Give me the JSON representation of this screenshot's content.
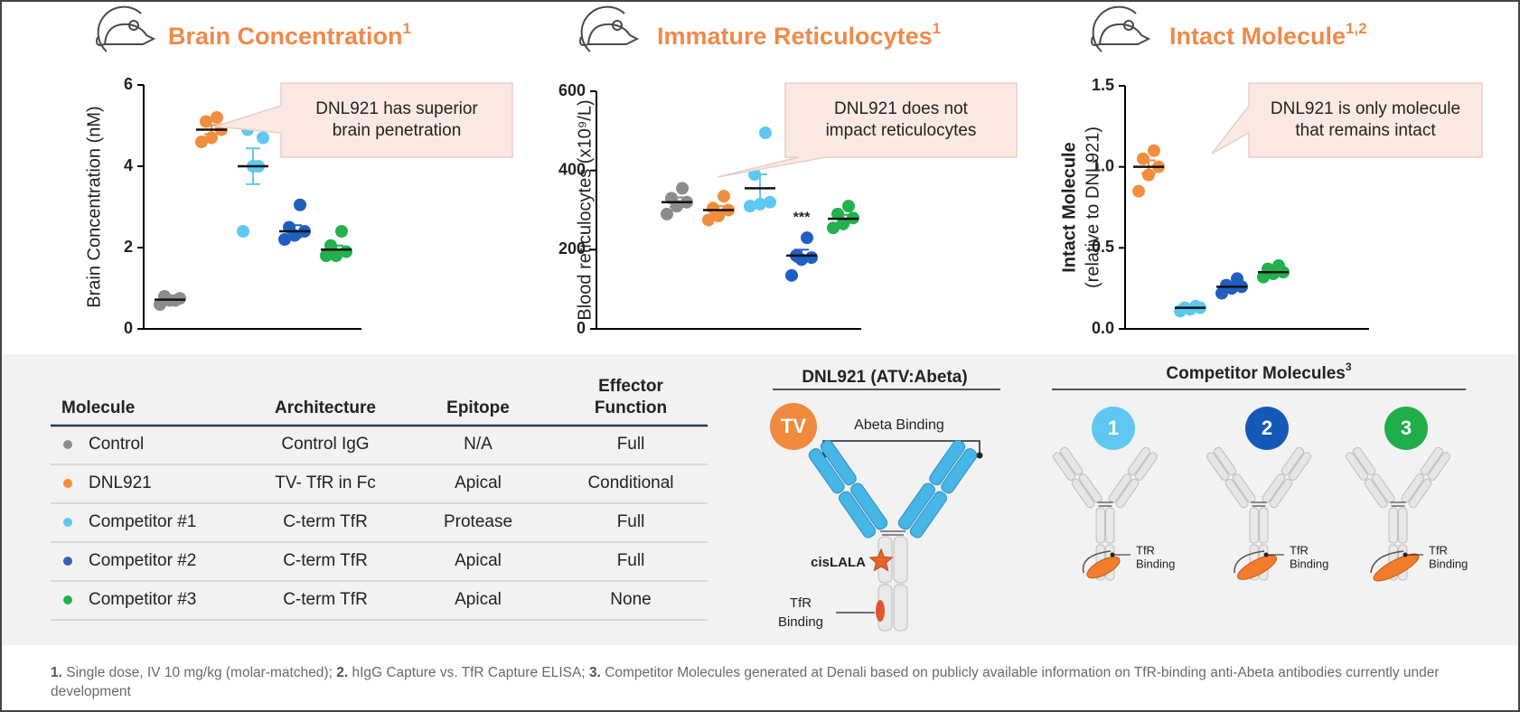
{
  "chart_data": [
    {
      "type": "dot",
      "title": "Brain Concentration",
      "title_sup": "1",
      "ylabel": [
        "Brain Concentration (nM)"
      ],
      "ylim": [
        0,
        6
      ],
      "yticks": [
        0,
        2,
        4,
        6
      ],
      "callout": [
        "DNL921 has superior",
        "brain penetration"
      ],
      "series": [
        {
          "color": "#8c8c8c",
          "values": [
            0.6,
            0.7,
            0.75,
            0.8,
            0.7
          ],
          "mean": 0.72,
          "sem": 0.04
        },
        {
          "color": "#ef8f3e",
          "values": [
            4.6,
            4.7,
            4.9,
            5.1,
            5.2
          ],
          "mean": 4.9,
          "sem": 0.11
        },
        {
          "color": "#5ec8f2",
          "values": [
            2.4,
            4.0,
            4.7,
            4.9,
            4.0
          ],
          "mean": 4.0,
          "sem": 0.44
        },
        {
          "color": "#1f5fbf",
          "values": [
            2.2,
            2.3,
            2.4,
            2.5,
            3.05
          ],
          "mean": 2.4,
          "sem": 0.15
        },
        {
          "color": "#22b14c",
          "values": [
            1.8,
            1.8,
            1.9,
            2.05,
            2.4
          ],
          "mean": 1.95,
          "sem": 0.1
        }
      ]
    },
    {
      "type": "dot",
      "title": "Immature Reticulocytes",
      "title_sup": "1",
      "ylabel": [
        "Blood reticulocytes (x10⁹/L)"
      ],
      "ylim": [
        0,
        600
      ],
      "yticks": [
        0,
        200,
        400,
        600
      ],
      "callout": [
        "DNL921 does not",
        "impact reticulocytes"
      ],
      "series": [
        {
          "color": "#8c8c8c",
          "values": [
            290,
            310,
            320,
            330,
            355
          ],
          "mean": 320,
          "sem": 12
        },
        {
          "color": "#ef8f3e",
          "values": [
            275,
            285,
            300,
            305,
            335
          ],
          "mean": 300,
          "sem": 10
        },
        {
          "color": "#5ec8f2",
          "values": [
            310,
            315,
            320,
            390,
            495
          ],
          "mean": 355,
          "sem": 35
        },
        {
          "color": "#1f5fbf",
          "values": [
            135,
            175,
            180,
            185,
            230
          ],
          "mean": 185,
          "sem": 15,
          "annotation": "***"
        },
        {
          "color": "#22b14c",
          "values": [
            255,
            265,
            280,
            290,
            310
          ],
          "mean": 278,
          "sem": 10
        }
      ]
    },
    {
      "type": "dot",
      "title": "Intact Molecule",
      "title_sup": "1,2",
      "ylabel": [
        "Intact Molecule",
        "(relative to DNL921)"
      ],
      "ylim": [
        0,
        1.5
      ],
      "yticks": [
        {
          "value": 0,
          "label": "0.0"
        },
        0.5,
        {
          "value": 1,
          "label": "1.0"
        },
        1.5
      ],
      "callout": [
        "DNL921 is only molecule",
        "that remains intact"
      ],
      "series": [
        {
          "color": "#ef8f3e",
          "values": [
            0.85,
            0.95,
            1.0,
            1.05,
            1.1
          ],
          "mean": 1.0,
          "sem": 0.04
        },
        {
          "color": "#5ec8f2",
          "values": [
            0.11,
            0.12,
            0.13,
            0.13,
            0.14
          ],
          "mean": 0.13,
          "sem": 0.01
        },
        {
          "color": "#1f5fbf",
          "values": [
            0.22,
            0.25,
            0.26,
            0.27,
            0.31
          ],
          "mean": 0.26,
          "sem": 0.02
        },
        {
          "color": "#22b14c",
          "values": [
            0.32,
            0.34,
            0.35,
            0.37,
            0.39
          ],
          "mean": 0.35,
          "sem": 0.015
        }
      ]
    }
  ],
  "table": {
    "header": [
      [
        "Molecule"
      ],
      [
        "Architecture"
      ],
      [
        "Epitope"
      ],
      [
        "Effector",
        "Function"
      ]
    ],
    "rows": [
      {
        "color": "#8c8c8c",
        "cells": [
          "Control",
          "Control IgG",
          "N/A",
          "Full"
        ]
      },
      {
        "color": "#ef8f3e",
        "cells": [
          "DNL921",
          "TV- TfR in Fc",
          "Apical",
          "Conditional"
        ]
      },
      {
        "color": "#5ec8f2",
        "cells": [
          "Competitor #1",
          "C-term TfR",
          "Protease",
          "Full"
        ]
      },
      {
        "color": "#3a5fb0",
        "cells": [
          "Competitor #2",
          "C-term TfR",
          "Apical",
          "Full"
        ]
      },
      {
        "color": "#22b14c",
        "cells": [
          "Competitor #3",
          "C-term TfR",
          "Apical",
          "None"
        ]
      }
    ]
  },
  "diagram": {
    "dnl921": {
      "title": "DNL921 (ATV:Abeta)",
      "badge": "TV",
      "binding": "Abeta Binding",
      "cislala": "cisLALA",
      "tfr": [
        "TfR",
        "Binding"
      ]
    },
    "competitors": {
      "title": "Competitor Molecules",
      "title_sup": "3",
      "items": [
        {
          "badge": "1",
          "color": "#5ec8f2",
          "tfr": [
            "TfR",
            "Binding"
          ]
        },
        {
          "badge": "2",
          "color": "#1559b8",
          "tfr": [
            "TfR",
            "Binding"
          ]
        },
        {
          "badge": "3",
          "color": "#1fae4a",
          "tfr": [
            "TfR",
            "Binding"
          ]
        }
      ]
    }
  },
  "footnotes": [
    {
      "num": "1.",
      "text": "Single dose, IV 10 mg/kg (molar-matched);"
    },
    {
      "num": "2.",
      "text": "hIgG Capture vs. TfR Capture ELISA;"
    },
    {
      "num": "3.",
      "text": "Competitor Molecules generated at Denali based on publicly available information on TfR-binding anti-Abeta antibodies currently under development"
    }
  ]
}
